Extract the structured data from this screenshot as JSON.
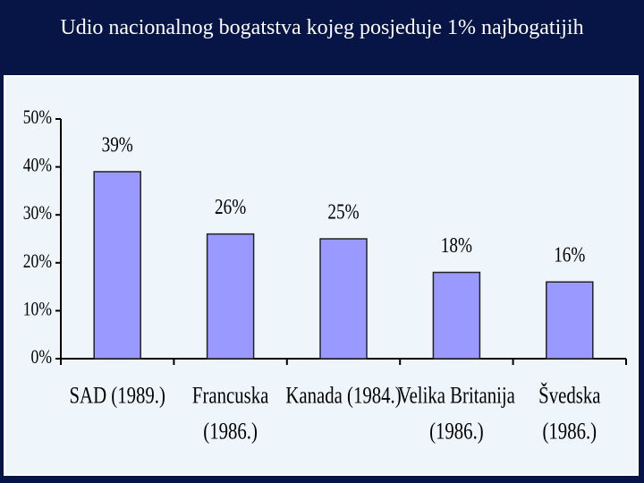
{
  "chart_data": {
    "type": "bar",
    "title": "Udio nacionalnog bogatstva kojeg posjeduje 1% najbogatijih",
    "categories": [
      "SAD (1989.)",
      "Francuska\n(1986.)",
      "Kanada (1984.)",
      "Velika Britanija\n(1986.)",
      "Švedska\n(1986.)"
    ],
    "values": [
      39,
      26,
      25,
      18,
      16
    ],
    "value_labels": [
      "39%",
      "26%",
      "25%",
      "18%",
      "16%"
    ],
    "color": "#9999ff",
    "ylim": [
      0,
      50
    ],
    "yticks": [
      {
        "value": 0,
        "label": "0%"
      },
      {
        "value": 10,
        "label": "10%"
      },
      {
        "value": 20,
        "label": "20%"
      },
      {
        "value": 30,
        "label": "30%"
      },
      {
        "value": 40,
        "label": "40%"
      },
      {
        "value": 50,
        "label": "50%"
      }
    ],
    "grid": false
  }
}
